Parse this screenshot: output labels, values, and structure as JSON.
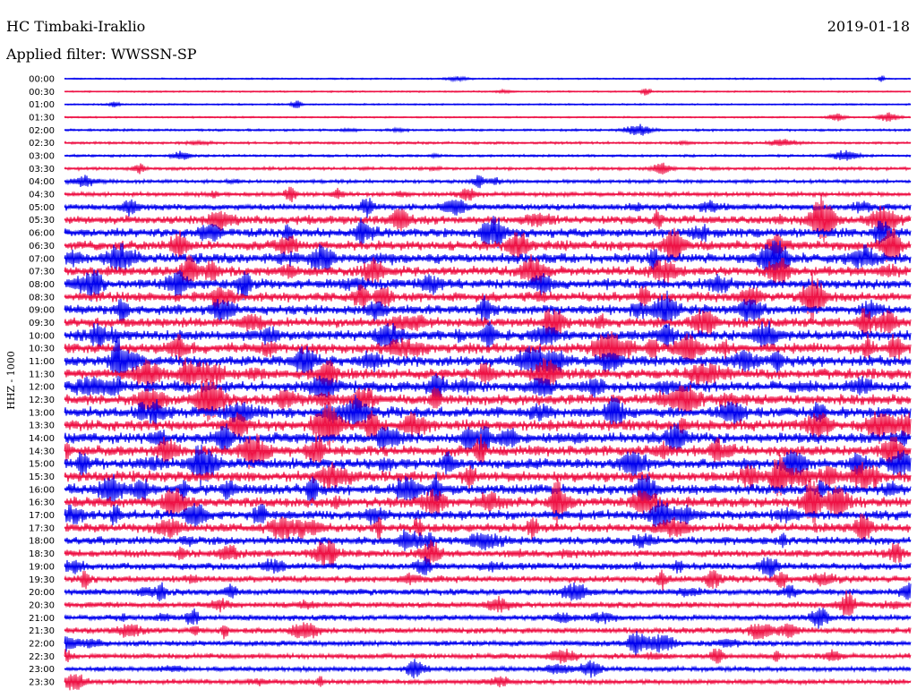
{
  "header": {
    "station": "HC Timbaki-Iraklio",
    "date": "2019-01-18",
    "filter": "Applied filter: WWSSN-SP",
    "channel": "HHZ - 1000"
  },
  "colors": {
    "even_trace": "#0000ee",
    "odd_trace": "#ee1144",
    "text": "#000000",
    "background": "#ffffff"
  },
  "chart_data": {
    "type": "line",
    "title": "HC Timbaki-Iraklio",
    "xlabel": "",
    "ylabel": "HHZ - 1000",
    "grid": false,
    "traces": [
      {
        "time": "00:00",
        "activity": 0.03
      },
      {
        "time": "00:30",
        "activity": 0.03
      },
      {
        "time": "01:00",
        "activity": 0.04
      },
      {
        "time": "01:30",
        "activity": 0.04
      },
      {
        "time": "02:00",
        "activity": 0.1
      },
      {
        "time": "02:30",
        "activity": 0.12
      },
      {
        "time": "03:00",
        "activity": 0.12
      },
      {
        "time": "03:30",
        "activity": 0.18
      },
      {
        "time": "04:00",
        "activity": 0.22
      },
      {
        "time": "04:30",
        "activity": 0.3
      },
      {
        "time": "05:00",
        "activity": 0.5
      },
      {
        "time": "05:30",
        "activity": 0.7
      },
      {
        "time": "06:00",
        "activity": 0.75
      },
      {
        "time": "06:30",
        "activity": 0.8
      },
      {
        "time": "07:00",
        "activity": 0.85
      },
      {
        "time": "07:30",
        "activity": 0.8
      },
      {
        "time": "08:00",
        "activity": 0.8
      },
      {
        "time": "08:30",
        "activity": 0.8
      },
      {
        "time": "09:00",
        "activity": 0.8
      },
      {
        "time": "09:30",
        "activity": 0.8
      },
      {
        "time": "10:00",
        "activity": 0.85
      },
      {
        "time": "10:30",
        "activity": 0.9
      },
      {
        "time": "11:00",
        "activity": 0.9
      },
      {
        "time": "11:30",
        "activity": 0.9
      },
      {
        "time": "12:00",
        "activity": 0.9
      },
      {
        "time": "12:30",
        "activity": 0.9
      },
      {
        "time": "13:00",
        "activity": 0.9
      },
      {
        "time": "13:30",
        "activity": 0.9
      },
      {
        "time": "14:00",
        "activity": 0.9
      },
      {
        "time": "14:30",
        "activity": 0.9
      },
      {
        "time": "15:00",
        "activity": 0.9
      },
      {
        "time": "15:30",
        "activity": 0.9
      },
      {
        "time": "16:00",
        "activity": 0.9
      },
      {
        "time": "16:30",
        "activity": 0.85
      },
      {
        "time": "17:00",
        "activity": 0.8
      },
      {
        "time": "17:30",
        "activity": 0.75
      },
      {
        "time": "18:00",
        "activity": 0.65
      },
      {
        "time": "18:30",
        "activity": 0.6
      },
      {
        "time": "19:00",
        "activity": 0.55
      },
      {
        "time": "19:30",
        "activity": 0.55
      },
      {
        "time": "20:00",
        "activity": 0.5
      },
      {
        "time": "20:30",
        "activity": 0.45
      },
      {
        "time": "21:00",
        "activity": 0.45
      },
      {
        "time": "21:30",
        "activity": 0.45
      },
      {
        "time": "22:00",
        "activity": 0.4
      },
      {
        "time": "22:30",
        "activity": 0.4
      },
      {
        "time": "23:00",
        "activity": 0.35
      },
      {
        "time": "23:30",
        "activity": 0.35
      }
    ]
  }
}
